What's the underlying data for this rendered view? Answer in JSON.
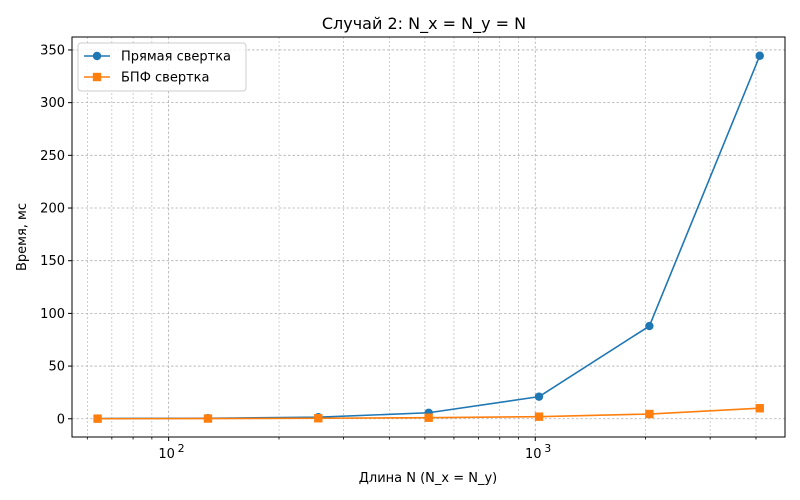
{
  "chart_data": {
    "type": "line",
    "title": "Случай 2: N_x = N_y = N",
    "xlabel": "Длина N (N_x = N_y)",
    "ylabel": "Время, мс",
    "x_scale": "log",
    "x_base": 10,
    "x_major_ticks": [
      100,
      1000
    ],
    "x_major_tick_labels": [
      "10",
      "10"
    ],
    "x_major_tick_exponents": [
      "2",
      "3"
    ],
    "xlim": [
      54.5,
      4800
    ],
    "ylim": [
      -17.3,
      362.3
    ],
    "y_ticks": [
      0,
      50,
      100,
      150,
      200,
      250,
      300,
      350
    ],
    "y_tick_labels": [
      "0",
      "50",
      "100",
      "150",
      "200",
      "250",
      "300",
      "350"
    ],
    "grid": true,
    "grid_minor": true,
    "legend_position": "top-left",
    "x": [
      64,
      128,
      256,
      512,
      1024,
      2048,
      4096
    ],
    "series": [
      {
        "name": "Прямая свертка",
        "color": "#1f77b4",
        "marker": "circle",
        "values": [
          0.2,
          0.5,
          1.5,
          5.7,
          21.0,
          88.0,
          344.5
        ]
      },
      {
        "name": "БПФ свертка",
        "color": "#ff7f0e",
        "marker": "square",
        "values": [
          0.1,
          0.2,
          0.5,
          1.0,
          2.0,
          4.5,
          10.0
        ]
      }
    ]
  }
}
